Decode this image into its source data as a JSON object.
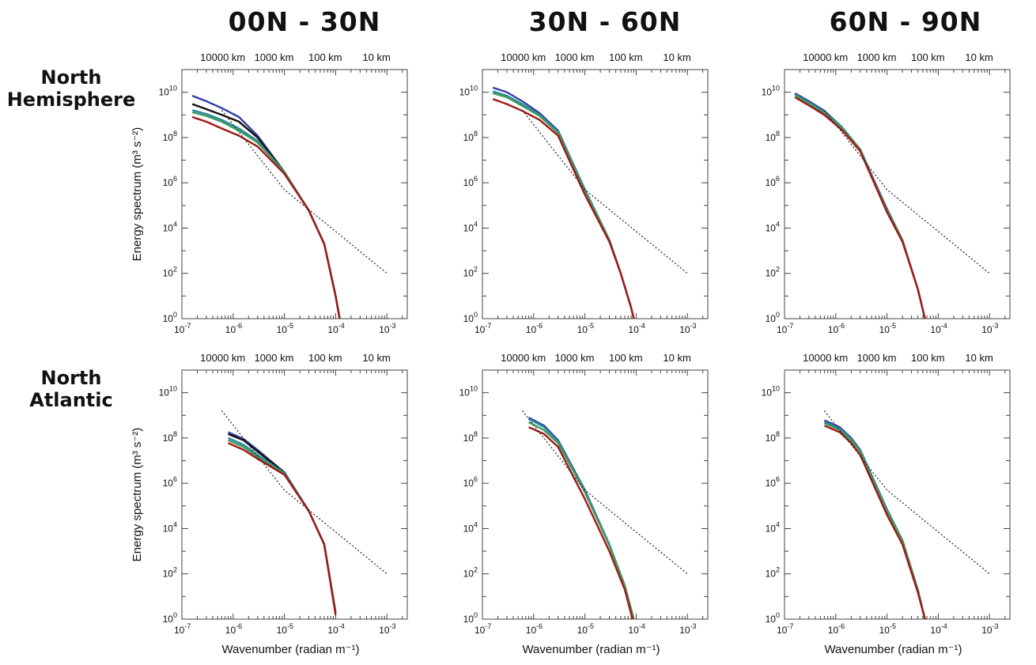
{
  "column_titles": [
    "00N - 30N",
    "30N - 60N",
    "60N - 90N"
  ],
  "row_titles": [
    [
      "North",
      "Hemisphere"
    ],
    [
      "North",
      "Atlantic"
    ]
  ],
  "series_colors": {
    "black": "#111111",
    "blue": "#3440a8",
    "red": "#a01818",
    "teal": "#2a8aa6",
    "green": "#3f9a5a",
    "reference": "#222222"
  },
  "axes": {
    "ylabel": "Energy spectrum (m³ s⁻²)",
    "xlabel": "Wavenumber (radian m⁻¹)",
    "x_exponent_ticks": [
      -7,
      -6,
      -5,
      -4,
      -3
    ],
    "y_exponent_ticks": [
      0,
      2,
      4,
      6,
      8,
      10
    ],
    "xlim": [
      1e-07,
      0.0025
    ],
    "ylim": [
      1,
      100000000000.0
    ],
    "scale": "log-log",
    "top_axis_labels": [
      "10000 km",
      "1000 km",
      "100 km",
      "10 km"
    ],
    "top_axis_wavenumbers": [
      6.28e-07,
      6.28e-06,
      6.28e-05,
      0.000628
    ]
  },
  "chart_data": [
    {
      "type": "line",
      "row": 0,
      "col": 0,
      "series": [
        {
          "color": "blue",
          "x": [
            1.6e-07,
            3e-07,
            6e-07,
            1.3e-06,
            3e-06,
            1e-05,
            3e-05,
            6e-05,
            0.0001,
            0.00012
          ],
          "y": [
            7000000000.0,
            4000000000.0,
            2000000000.0,
            800000000.0,
            120000000.0,
            3000000.0,
            60000.0,
            2000.0,
            10.0,
            1
          ]
        },
        {
          "color": "black",
          "x": [
            1.6e-07,
            3e-07,
            6e-07,
            1.3e-06,
            3e-06,
            1e-05,
            3e-05,
            6e-05,
            0.0001,
            0.00012
          ],
          "y": [
            3000000000.0,
            1800000000.0,
            1000000000.0,
            500000000.0,
            100000000.0,
            3000000.0,
            60000.0,
            2000.0,
            10.0,
            1
          ]
        },
        {
          "color": "teal",
          "x": [
            1.6e-07,
            3e-07,
            6e-07,
            1.3e-06,
            3e-06,
            1e-05,
            3e-05,
            6e-05,
            0.0001,
            0.00012
          ],
          "y": [
            1600000000.0,
            1100000000.0,
            600000000.0,
            250000000.0,
            70000000.0,
            3000000.0,
            60000.0,
            2000.0,
            10.0,
            1
          ]
        },
        {
          "color": "green",
          "x": [
            1.6e-07,
            3e-07,
            6e-07,
            1.3e-06,
            3e-06,
            1e-05,
            3e-05,
            6e-05,
            0.0001,
            0.00012
          ],
          "y": [
            1300000000.0,
            900000000.0,
            500000000.0,
            200000000.0,
            60000000.0,
            3000000.0,
            60000.0,
            2000.0,
            10.0,
            1
          ]
        },
        {
          "color": "red",
          "x": [
            1.6e-07,
            3e-07,
            6e-07,
            1.3e-06,
            3e-06,
            1e-05,
            3e-05,
            6e-05,
            0.0001,
            0.00012
          ],
          "y": [
            800000000.0,
            500000000.0,
            250000000.0,
            120000000.0,
            40000000.0,
            2500000.0,
            60000.0,
            2000.0,
            10.0,
            1
          ]
        },
        {
          "color": "reference",
          "dashed": true,
          "x": [
            6e-07,
            1e-05,
            0.001
          ],
          "y": [
            1600000000.0,
            500000.0,
            100.0
          ]
        }
      ]
    },
    {
      "type": "line",
      "row": 0,
      "col": 1,
      "series": [
        {
          "color": "blue",
          "x": [
            1.6e-07,
            3e-07,
            6e-07,
            1.3e-06,
            3e-06,
            1e-05,
            3e-05,
            5e-05,
            8e-05,
            9e-05
          ],
          "y": [
            16000000000.0,
            10000000000.0,
            4000000000.0,
            1200000000.0,
            200000000.0,
            500000.0,
            3000.0,
            100.0,
            3,
            1
          ]
        },
        {
          "color": "teal",
          "x": [
            1.6e-07,
            3e-07,
            6e-07,
            1.3e-06,
            3e-06,
            1e-05,
            3e-05,
            5e-05,
            8e-05,
            9e-05
          ],
          "y": [
            11000000000.0,
            7000000000.0,
            3000000000.0,
            1000000000.0,
            180000000.0,
            500000.0,
            3000.0,
            100.0,
            3,
            1
          ]
        },
        {
          "color": "green",
          "x": [
            1.6e-07,
            3e-07,
            6e-07,
            1.3e-06,
            3e-06,
            1e-05,
            3e-05,
            5e-05,
            8e-05,
            9e-05
          ],
          "y": [
            9000000000.0,
            6000000000.0,
            2500000000.0,
            900000000.0,
            160000000.0,
            450000.0,
            3000.0,
            100.0,
            3,
            1
          ]
        },
        {
          "color": "red",
          "x": [
            1.6e-07,
            3e-07,
            6e-07,
            1.3e-06,
            3e-06,
            1e-05,
            3e-05,
            5e-05,
            8e-05,
            9e-05
          ],
          "y": [
            5000000000.0,
            3000000000.0,
            1500000000.0,
            600000000.0,
            120000000.0,
            300000.0,
            2500.0,
            100.0,
            3,
            1
          ]
        },
        {
          "color": "reference",
          "dashed": true,
          "x": [
            6e-07,
            1e-05,
            0.001
          ],
          "y": [
            1600000000.0,
            500000.0,
            100.0
          ]
        }
      ]
    },
    {
      "type": "line",
      "row": 0,
      "col": 2,
      "series": [
        {
          "color": "blue",
          "x": [
            1.6e-07,
            3e-07,
            6e-07,
            1.3e-06,
            3e-06,
            1e-05,
            2e-05,
            4e-05,
            5.5e-05
          ],
          "y": [
            9000000000.0,
            4000000000.0,
            1500000000.0,
            300000000.0,
            30000000.0,
            70000.0,
            3000.0,
            20.0,
            1
          ]
        },
        {
          "color": "teal",
          "x": [
            1.6e-07,
            3e-07,
            6e-07,
            1.3e-06,
            3e-06,
            1e-05,
            2e-05,
            4e-05,
            5.5e-05
          ],
          "y": [
            8000000000.0,
            3500000000.0,
            1300000000.0,
            300000000.0,
            30000000.0,
            60000.0,
            3000.0,
            20.0,
            1
          ]
        },
        {
          "color": "green",
          "x": [
            1.6e-07,
            3e-07,
            6e-07,
            1.3e-06,
            3e-06,
            1e-05,
            2e-05,
            4e-05,
            5.5e-05
          ],
          "y": [
            7500000000.0,
            3200000000.0,
            1200000000.0,
            280000000.0,
            30000000.0,
            60000.0,
            3000.0,
            20.0,
            1
          ]
        },
        {
          "color": "red",
          "x": [
            1.6e-07,
            3e-07,
            6e-07,
            1.3e-06,
            3e-06,
            1e-05,
            2e-05,
            4e-05,
            5.5e-05
          ],
          "y": [
            6000000000.0,
            2600000000.0,
            1000000000.0,
            220000000.0,
            25000000.0,
            50000.0,
            2500.0,
            20.0,
            1
          ]
        },
        {
          "color": "reference",
          "dashed": true,
          "x": [
            6e-07,
            1e-05,
            0.001
          ],
          "y": [
            1600000000.0,
            500000.0,
            100.0
          ]
        }
      ]
    },
    {
      "type": "line",
      "row": 1,
      "col": 0,
      "series": [
        {
          "color": "blue",
          "x": [
            8e-07,
            1.6e-06,
            3e-06,
            1e-05,
            3e-05,
            6e-05,
            0.0001
          ],
          "y": [
            180000000.0,
            90000000.0,
            30000000.0,
            3000000.0,
            60000.0,
            2000.0,
            2
          ]
        },
        {
          "color": "black",
          "x": [
            8e-07,
            1.6e-06,
            3e-06,
            1e-05,
            3e-05,
            6e-05,
            0.0001
          ],
          "y": [
            150000000.0,
            80000000.0,
            25000000.0,
            3000000.0,
            60000.0,
            2000.0,
            2
          ]
        },
        {
          "color": "teal",
          "x": [
            8e-07,
            1.6e-06,
            3e-06,
            1e-05,
            3e-05,
            6e-05,
            0.0001
          ],
          "y": [
            100000000.0,
            50000000.0,
            18000000.0,
            2800000.0,
            60000.0,
            2000.0,
            2
          ]
        },
        {
          "color": "green",
          "x": [
            8e-07,
            1.6e-06,
            3e-06,
            1e-05,
            3e-05,
            6e-05,
            0.0001
          ],
          "y": [
            80000000.0,
            40000000.0,
            15000000.0,
            2600000.0,
            60000.0,
            2000.0,
            2
          ]
        },
        {
          "color": "red",
          "x": [
            8e-07,
            1.6e-06,
            3e-06,
            1e-05,
            3e-05,
            6e-05,
            0.0001
          ],
          "y": [
            60000000.0,
            30000000.0,
            12000000.0,
            2400000.0,
            60000.0,
            2000.0,
            1.5
          ]
        },
        {
          "color": "reference",
          "dashed": true,
          "x": [
            6e-07,
            1e-05,
            0.001
          ],
          "y": [
            1600000000.0,
            500000.0,
            100.0
          ]
        }
      ]
    },
    {
      "type": "line",
      "row": 1,
      "col": 1,
      "series": [
        {
          "color": "blue",
          "x": [
            8e-07,
            1.6e-06,
            3e-06,
            1e-05,
            3e-05,
            6e-05,
            9e-05
          ],
          "y": [
            800000000.0,
            350000000.0,
            80000000.0,
            500000.0,
            2000.0,
            30.0,
            1
          ]
        },
        {
          "color": "teal",
          "x": [
            8e-07,
            1.6e-06,
            3e-06,
            1e-05,
            3e-05,
            6e-05,
            9e-05
          ],
          "y": [
            700000000.0,
            300000000.0,
            70000000.0,
            450000.0,
            2000.0,
            30.0,
            1
          ]
        },
        {
          "color": "green",
          "x": [
            8e-07,
            1.6e-06,
            3e-06,
            1e-05,
            3e-05,
            6e-05,
            9e-05
          ],
          "y": [
            500000000.0,
            220000000.0,
            60000000.0,
            400000.0,
            1800.0,
            30.0,
            1
          ]
        },
        {
          "color": "red",
          "x": [
            8e-07,
            1.6e-06,
            3e-06,
            1e-05,
            3e-05,
            6e-05,
            8.5e-05
          ],
          "y": [
            300000000.0,
            150000000.0,
            40000000.0,
            200000.0,
            1000.0,
            20.0,
            1
          ]
        },
        {
          "color": "reference",
          "dashed": true,
          "x": [
            6e-07,
            1e-05,
            0.001
          ],
          "y": [
            1600000000.0,
            500000.0,
            100.0
          ]
        }
      ]
    },
    {
      "type": "line",
      "row": 1,
      "col": 2,
      "series": [
        {
          "color": "blue",
          "x": [
            6e-07,
            1.2e-06,
            2e-06,
            3e-06,
            1e-05,
            2e-05,
            4e-05,
            5.5e-05
          ],
          "y": [
            600000000.0,
            300000000.0,
            100000000.0,
            30000000.0,
            70000.0,
            3000.0,
            20.0,
            1
          ]
        },
        {
          "color": "teal",
          "x": [
            6e-07,
            1.2e-06,
            2e-06,
            3e-06,
            1e-05,
            2e-05,
            4e-05,
            5.5e-05
          ],
          "y": [
            500000000.0,
            260000000.0,
            90000000.0,
            28000000.0,
            65000.0,
            3000.0,
            20.0,
            1
          ]
        },
        {
          "color": "green",
          "x": [
            6e-07,
            1.2e-06,
            2e-06,
            3e-06,
            1e-05,
            2e-05,
            4e-05,
            5.5e-05
          ],
          "y": [
            450000000.0,
            230000000.0,
            80000000.0,
            26000000.0,
            60000.0,
            3000.0,
            20.0,
            1
          ]
        },
        {
          "color": "red",
          "x": [
            6e-07,
            1.2e-06,
            2e-06,
            3e-06,
            1e-05,
            2e-05,
            4e-05,
            5.5e-05
          ],
          "y": [
            350000000.0,
            180000000.0,
            60000000.0,
            18000000.0,
            40000.0,
            2000.0,
            15.0,
            1
          ]
        },
        {
          "color": "reference",
          "dashed": true,
          "x": [
            6e-07,
            1e-05,
            0.001
          ],
          "y": [
            1600000000.0,
            500000.0,
            100.0
          ]
        }
      ]
    }
  ]
}
